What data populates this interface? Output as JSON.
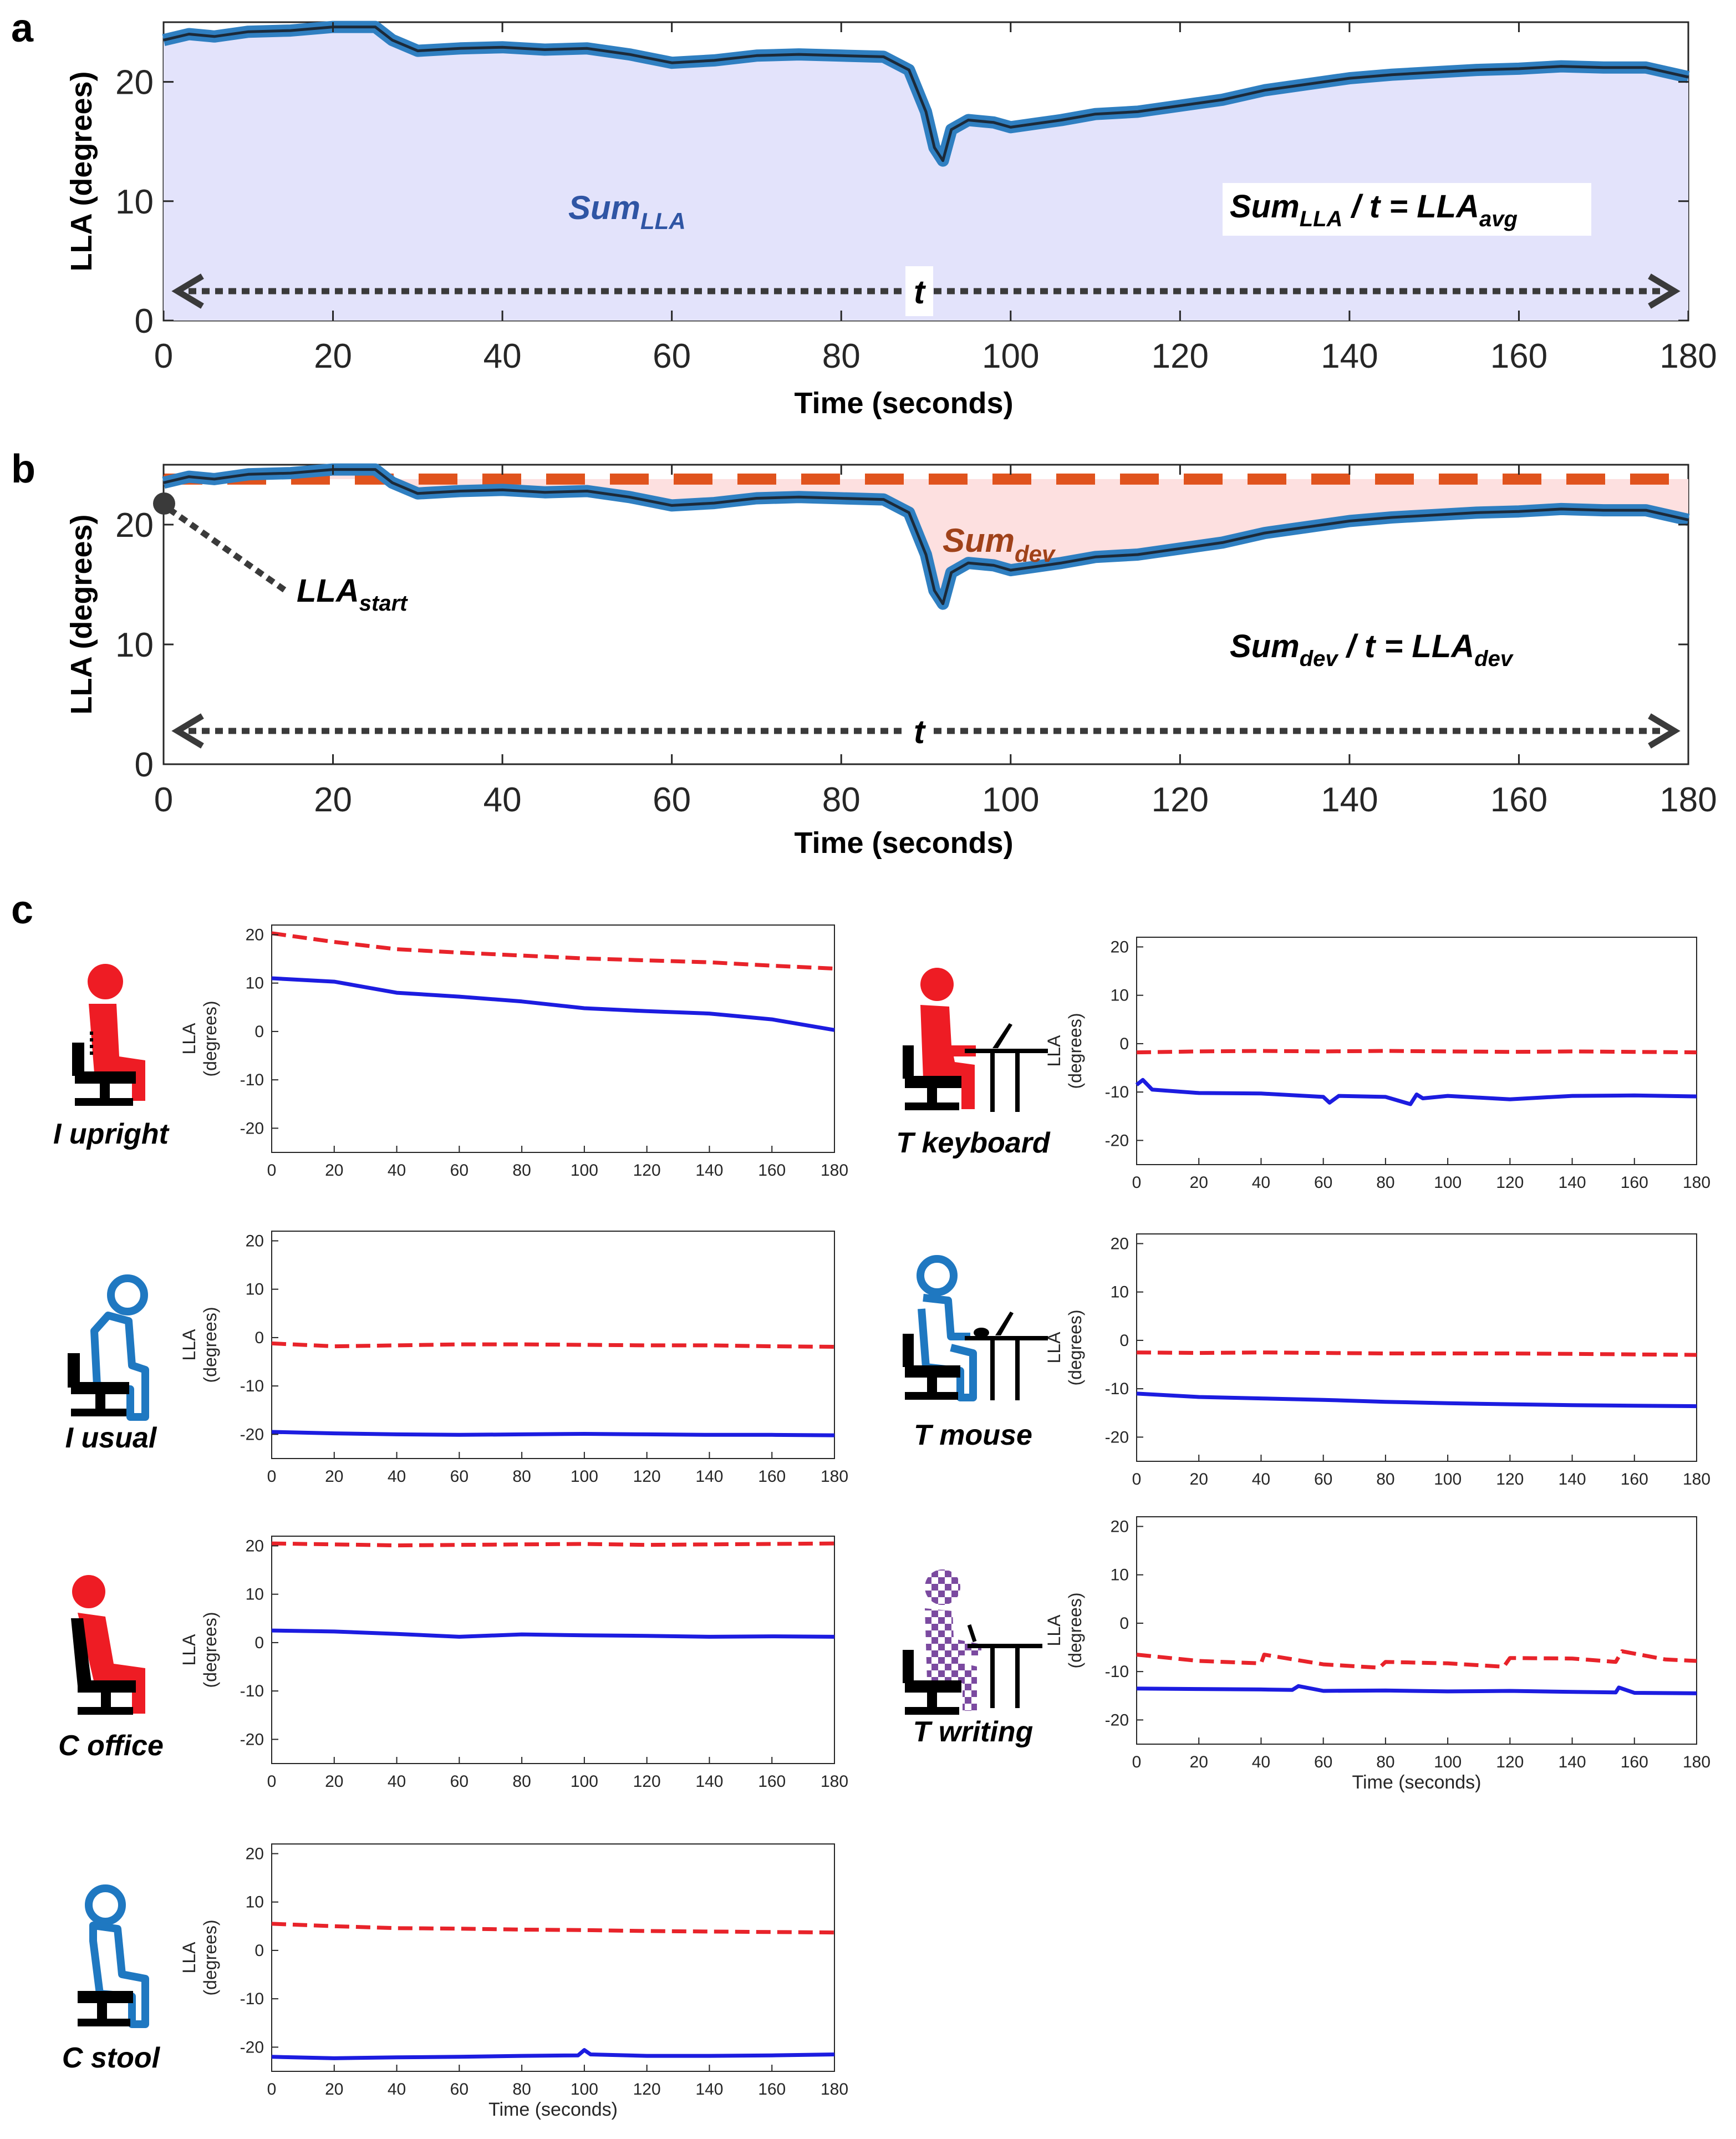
{
  "panel_labels": {
    "a": "a",
    "b": "b",
    "c": "c"
  },
  "panel_a": {
    "ylabel": "LLA (degrees)",
    "xlabel": "Time (seconds)",
    "annotation_sum_main": "Sum",
    "annotation_sum_sub": "LLA",
    "annotation_eq_sum_main": "Sum",
    "annotation_eq_sum_sub": "LLA",
    "annotation_eq_mid": " / t = ",
    "annotation_eq_res_main": "LLA",
    "annotation_eq_res_sub": "avg",
    "t_label": "t"
  },
  "panel_b": {
    "ylabel": "LLA (degrees)",
    "xlabel": "Time (seconds)",
    "annotation_sum_main": "Sum",
    "annotation_sum_sub": "dev",
    "annotation_start_main": "LLA",
    "annotation_start_sub": "start",
    "annotation_eq_sum_main": "Sum",
    "annotation_eq_sum_sub": "dev",
    "annotation_eq_mid": " / t = ",
    "annotation_eq_res_main": "LLA",
    "annotation_eq_res_sub": "dev",
    "t_label": "t"
  },
  "panel_c_subplots": [
    {
      "posture": "I upright",
      "ylabel1": "LLA",
      "ylabel2": "(degrees)",
      "xlabel": ""
    },
    {
      "posture": "I usual",
      "ylabel1": "LLA",
      "ylabel2": "(degrees)",
      "xlabel": ""
    },
    {
      "posture": "C office",
      "ylabel1": "LLA",
      "ylabel2": "(degrees)",
      "xlabel": ""
    },
    {
      "posture": "C stool",
      "ylabel1": "LLA",
      "ylabel2": "(degrees)",
      "xlabel": "Time (seconds)"
    },
    {
      "posture": "T keyboard",
      "ylabel1": "LLA",
      "ylabel2": "(degrees)",
      "xlabel": ""
    },
    {
      "posture": "T mouse",
      "ylabel1": "LLA",
      "ylabel2": "(degrees)",
      "xlabel": ""
    },
    {
      "posture": "T writing",
      "ylabel1": "LLA",
      "ylabel2": "(degrees)",
      "xlabel": "Time (seconds)"
    }
  ],
  "colors": {
    "main_line": "#2f7fc1",
    "main_line_core": "#1b2a3a",
    "fill_a": "#e3e3fb",
    "fill_b": "#fde0e0",
    "reference": "#e0531d",
    "sum_a_text": "#2f55a4",
    "sum_b_text": "#a0421a",
    "small_red": "#e8232a",
    "small_blue": "#1c1ce0",
    "icon_red": "#ee1c24",
    "icon_blue": "#1f78c1",
    "icon_check": "#7b4aa0"
  },
  "chart_data": [
    {
      "id": "a",
      "type": "area",
      "title": "",
      "xlabel": "Time (seconds)",
      "ylabel": "LLA (degrees)",
      "xlim": [
        0,
        180
      ],
      "ylim": [
        0,
        25
      ],
      "xticks": [
        0,
        20,
        40,
        60,
        80,
        100,
        120,
        140,
        160,
        180
      ],
      "yticks": [
        0,
        10,
        20
      ],
      "series": [
        {
          "name": "LLA",
          "x": [
            0,
            3,
            6,
            10,
            15,
            20,
            25,
            27,
            30,
            35,
            40,
            45,
            50,
            55,
            60,
            65,
            70,
            75,
            80,
            85,
            88,
            90,
            91,
            92,
            93,
            95,
            98,
            100,
            103,
            106,
            110,
            115,
            120,
            125,
            130,
            135,
            140,
            145,
            150,
            155,
            160,
            165,
            170,
            175,
            180
          ],
          "y": [
            23.5,
            24.0,
            23.8,
            24.2,
            24.3,
            24.6,
            24.6,
            23.5,
            22.6,
            22.8,
            22.9,
            22.7,
            22.8,
            22.3,
            21.6,
            21.8,
            22.2,
            22.3,
            22.2,
            22.1,
            21.0,
            17.5,
            14.5,
            13.4,
            16.0,
            16.8,
            16.6,
            16.2,
            16.5,
            16.8,
            17.3,
            17.5,
            18.0,
            18.5,
            19.3,
            19.8,
            20.3,
            20.6,
            20.8,
            21.0,
            21.1,
            21.3,
            21.2,
            21.2,
            20.4
          ]
        }
      ],
      "annotations": [
        "SumLLA",
        "SumLLA / t = LLAavg",
        "t"
      ]
    },
    {
      "id": "b",
      "type": "line",
      "title": "",
      "xlabel": "Time (seconds)",
      "ylabel": "LLA (degrees)",
      "xlim": [
        0,
        180
      ],
      "ylim": [
        0,
        25
      ],
      "xticks": [
        0,
        20,
        40,
        60,
        80,
        100,
        120,
        140,
        160,
        180
      ],
      "yticks": [
        0,
        10,
        20
      ],
      "reference_value": 23.8,
      "series": [
        {
          "name": "LLA",
          "x": [
            0,
            3,
            6,
            10,
            15,
            20,
            25,
            27,
            30,
            35,
            40,
            45,
            50,
            55,
            60,
            65,
            70,
            75,
            80,
            85,
            88,
            90,
            91,
            92,
            93,
            95,
            98,
            100,
            103,
            106,
            110,
            115,
            120,
            125,
            130,
            135,
            140,
            145,
            150,
            155,
            160,
            165,
            170,
            175,
            180
          ],
          "y": [
            23.5,
            24.0,
            23.8,
            24.2,
            24.3,
            24.6,
            24.6,
            23.5,
            22.6,
            22.8,
            22.9,
            22.7,
            22.8,
            22.3,
            21.6,
            21.8,
            22.2,
            22.3,
            22.2,
            22.1,
            21.0,
            17.5,
            14.5,
            13.4,
            16.0,
            16.8,
            16.6,
            16.2,
            16.5,
            16.8,
            17.3,
            17.5,
            18.0,
            18.5,
            19.3,
            19.8,
            20.3,
            20.6,
            20.8,
            21.0,
            21.1,
            21.3,
            21.2,
            21.2,
            20.4
          ]
        },
        {
          "name": "LLA start (reference)",
          "x": [
            0,
            180
          ],
          "y": [
            23.8,
            23.8
          ]
        }
      ],
      "annotations": [
        "Sumdev",
        "LLAstart",
        "Sumdev / t = LLAdev",
        "t"
      ]
    },
    {
      "id": "c-I-upright",
      "type": "line",
      "posture": "I upright",
      "xlim": [
        0,
        180
      ],
      "ylim": [
        -25,
        22
      ],
      "xticks": [
        0,
        20,
        40,
        60,
        80,
        100,
        120,
        140,
        160,
        180
      ],
      "yticks": [
        -20,
        -10,
        0,
        10,
        20
      ],
      "series": [
        {
          "name": "reference",
          "style": "dashed",
          "x": [
            0,
            20,
            40,
            60,
            80,
            100,
            120,
            140,
            160,
            180
          ],
          "y": [
            20.3,
            18.5,
            17.0,
            16.3,
            15.7,
            15.1,
            14.7,
            14.3,
            13.6,
            13.0
          ]
        },
        {
          "name": "LLA",
          "style": "solid",
          "x": [
            0,
            20,
            40,
            60,
            80,
            100,
            120,
            140,
            160,
            180
          ],
          "y": [
            11.0,
            10.3,
            8.0,
            7.2,
            6.2,
            4.8,
            4.2,
            3.7,
            2.5,
            0.3
          ]
        }
      ]
    },
    {
      "id": "c-I-usual",
      "type": "line",
      "posture": "I usual",
      "xlim": [
        0,
        180
      ],
      "ylim": [
        -25,
        22
      ],
      "xticks": [
        0,
        20,
        40,
        60,
        80,
        100,
        120,
        140,
        160,
        180
      ],
      "yticks": [
        -20,
        -10,
        0,
        10,
        20
      ],
      "series": [
        {
          "name": "reference",
          "style": "dashed",
          "x": [
            0,
            20,
            40,
            60,
            80,
            100,
            120,
            140,
            160,
            180
          ],
          "y": [
            -1.2,
            -1.8,
            -1.6,
            -1.4,
            -1.4,
            -1.5,
            -1.6,
            -1.6,
            -1.8,
            -1.9
          ]
        },
        {
          "name": "LLA",
          "style": "solid",
          "x": [
            0,
            20,
            40,
            60,
            80,
            100,
            120,
            140,
            160,
            180
          ],
          "y": [
            -19.5,
            -19.8,
            -20.0,
            -20.1,
            -20.0,
            -19.9,
            -20.0,
            -20.1,
            -20.1,
            -20.2
          ]
        }
      ]
    },
    {
      "id": "c-C-office",
      "type": "line",
      "posture": "C office",
      "xlim": [
        0,
        180
      ],
      "ylim": [
        -25,
        22
      ],
      "xticks": [
        0,
        20,
        40,
        60,
        80,
        100,
        120,
        140,
        160,
        180
      ],
      "yticks": [
        -20,
        -10,
        0,
        10,
        20
      ],
      "series": [
        {
          "name": "reference",
          "style": "dashed",
          "x": [
            0,
            20,
            40,
            60,
            80,
            100,
            120,
            140,
            160,
            180
          ],
          "y": [
            20.5,
            20.3,
            20.1,
            20.2,
            20.3,
            20.4,
            20.2,
            20.3,
            20.4,
            20.5
          ]
        },
        {
          "name": "LLA",
          "style": "solid",
          "x": [
            0,
            20,
            40,
            60,
            80,
            100,
            120,
            140,
            160,
            180
          ],
          "y": [
            2.5,
            2.3,
            1.8,
            1.2,
            1.7,
            1.5,
            1.4,
            1.2,
            1.3,
            1.2
          ]
        }
      ]
    },
    {
      "id": "c-C-stool",
      "type": "line",
      "posture": "C stool",
      "xlim": [
        0,
        180
      ],
      "ylim": [
        -25,
        22
      ],
      "xticks": [
        0,
        20,
        40,
        60,
        80,
        100,
        120,
        140,
        160,
        180
      ],
      "yticks": [
        -20,
        -10,
        0,
        10,
        20
      ],
      "series": [
        {
          "name": "reference",
          "style": "dashed",
          "x": [
            0,
            20,
            40,
            60,
            80,
            100,
            120,
            140,
            160,
            180
          ],
          "y": [
            5.5,
            5.0,
            4.6,
            4.5,
            4.3,
            4.2,
            4.0,
            3.9,
            3.8,
            3.7
          ]
        },
        {
          "name": "LLA",
          "style": "solid",
          "x": [
            0,
            20,
            40,
            60,
            80,
            98,
            100,
            102,
            120,
            140,
            160,
            180
          ],
          "y": [
            -22.0,
            -22.3,
            -22.1,
            -22.0,
            -21.8,
            -21.7,
            -20.6,
            -21.5,
            -21.8,
            -21.8,
            -21.7,
            -21.5
          ]
        }
      ]
    },
    {
      "id": "c-T-keyboard",
      "type": "line",
      "posture": "T keyboard",
      "xlim": [
        0,
        180
      ],
      "ylim": [
        -25,
        22
      ],
      "xticks": [
        0,
        20,
        40,
        60,
        80,
        100,
        120,
        140,
        160,
        180
      ],
      "yticks": [
        -20,
        -10,
        0,
        10,
        20
      ],
      "series": [
        {
          "name": "reference",
          "style": "dashed",
          "x": [
            0,
            20,
            40,
            60,
            80,
            100,
            120,
            140,
            160,
            180
          ],
          "y": [
            -1.8,
            -1.6,
            -1.5,
            -1.6,
            -1.5,
            -1.6,
            -1.7,
            -1.6,
            -1.7,
            -1.8
          ]
        },
        {
          "name": "LLA",
          "style": "solid",
          "x": [
            0,
            2,
            5,
            20,
            40,
            60,
            62,
            65,
            80,
            88,
            90,
            92,
            100,
            120,
            140,
            160,
            180
          ],
          "y": [
            -8.5,
            -7.5,
            -9.5,
            -10.2,
            -10.3,
            -11.0,
            -12.2,
            -10.8,
            -11.0,
            -12.5,
            -10.5,
            -11.3,
            -10.8,
            -11.5,
            -10.8,
            -10.7,
            -10.9
          ]
        }
      ]
    },
    {
      "id": "c-T-mouse",
      "type": "line",
      "posture": "T mouse",
      "xlim": [
        0,
        180
      ],
      "ylim": [
        -25,
        22
      ],
      "xticks": [
        0,
        20,
        40,
        60,
        80,
        100,
        120,
        140,
        160,
        180
      ],
      "yticks": [
        -20,
        -10,
        0,
        10,
        20
      ],
      "series": [
        {
          "name": "reference",
          "style": "dashed",
          "x": [
            0,
            20,
            40,
            60,
            80,
            100,
            120,
            140,
            160,
            180
          ],
          "y": [
            -2.5,
            -2.6,
            -2.5,
            -2.6,
            -2.7,
            -2.7,
            -2.7,
            -2.8,
            -2.9,
            -3.0
          ]
        },
        {
          "name": "LLA",
          "style": "solid",
          "x": [
            0,
            20,
            40,
            60,
            80,
            100,
            120,
            140,
            160,
            180
          ],
          "y": [
            -11.0,
            -11.7,
            -12.0,
            -12.3,
            -12.7,
            -13.0,
            -13.2,
            -13.4,
            -13.5,
            -13.6
          ]
        }
      ]
    },
    {
      "id": "c-T-writing",
      "type": "line",
      "posture": "T writing",
      "xlim": [
        0,
        180
      ],
      "ylim": [
        -25,
        22
      ],
      "xticks": [
        0,
        20,
        40,
        60,
        80,
        100,
        120,
        140,
        160,
        180
      ],
      "yticks": [
        -20,
        -10,
        0,
        10,
        20
      ],
      "series": [
        {
          "name": "reference",
          "style": "dashed",
          "x": [
            0,
            20,
            40,
            41,
            60,
            78,
            80,
            100,
            118,
            120,
            140,
            154,
            156,
            170,
            180
          ],
          "y": [
            -6.5,
            -7.8,
            -8.3,
            -6.5,
            -8.5,
            -9.2,
            -8.0,
            -8.3,
            -9.0,
            -7.2,
            -7.3,
            -8.0,
            -5.8,
            -7.5,
            -7.8
          ]
        },
        {
          "name": "LLA",
          "style": "solid",
          "x": [
            0,
            20,
            40,
            50,
            52,
            60,
            80,
            100,
            120,
            140,
            154,
            155,
            160,
            180
          ],
          "y": [
            -13.5,
            -13.6,
            -13.7,
            -13.8,
            -13.0,
            -14.0,
            -13.9,
            -14.1,
            -14.0,
            -14.2,
            -14.3,
            -13.3,
            -14.4,
            -14.5
          ]
        }
      ]
    }
  ]
}
